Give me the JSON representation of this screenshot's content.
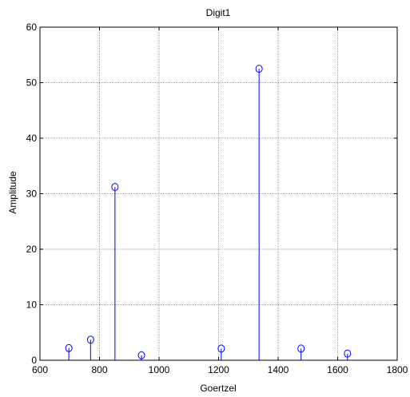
{
  "chart_data": {
    "type": "stem",
    "title": "Digit1",
    "xlabel": "Goertzel",
    "ylabel": "Amplitude",
    "xlim": [
      600,
      1800
    ],
    "ylim": [
      0,
      60
    ],
    "xticks": [
      600,
      800,
      1000,
      1200,
      1400,
      1600,
      1800
    ],
    "yticks": [
      0,
      10,
      20,
      30,
      40,
      50,
      60
    ],
    "grid": true,
    "series": [
      {
        "x": [
          697,
          770,
          852,
          941,
          1209,
          1336,
          1477,
          1633
        ],
        "y": [
          2.2,
          3.7,
          31.2,
          0.9,
          2.1,
          52.5,
          2.1,
          1.2
        ]
      }
    ]
  },
  "colors": {
    "series": "#0000ff",
    "axes": "#000000",
    "grid": "#808080"
  }
}
